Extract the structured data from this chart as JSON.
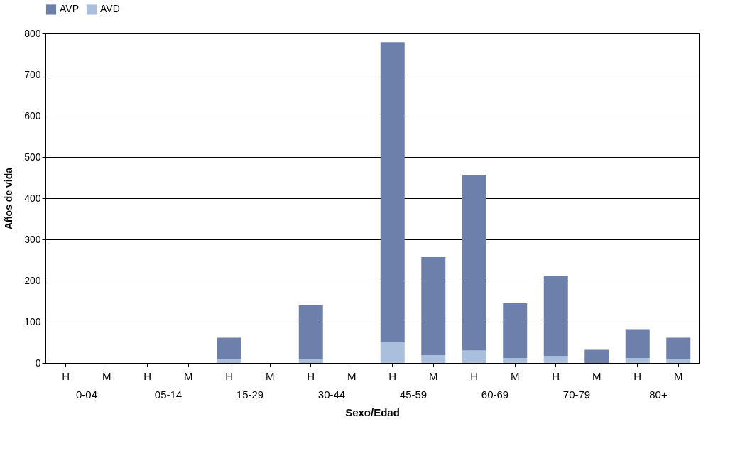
{
  "chart_data": {
    "type": "bar",
    "stacked": true,
    "xlabel": "Sexo/Edad",
    "ylabel": "Años de vida",
    "categories": [
      "H",
      "M",
      "H",
      "M",
      "H",
      "M",
      "H",
      "M",
      "H",
      "M",
      "H",
      "M",
      "H",
      "M",
      "H",
      "M"
    ],
    "annotations": [
      "0-04",
      "05-14",
      "15-29",
      "30-44",
      "45-59",
      "60-69",
      "70-79",
      "80+"
    ],
    "series": [
      {
        "name": "AVD",
        "color": "#a9bfdb",
        "values": [
          0,
          0,
          0,
          0,
          10,
          0,
          10,
          0,
          50,
          19,
          30,
          12,
          17,
          null,
          12,
          9
        ]
      },
      {
        "name": "AVP",
        "color": "#6d7fab",
        "values": [
          0,
          0,
          0,
          0,
          51,
          0,
          130,
          0,
          729,
          238,
          427,
          133,
          194,
          32,
          70,
          52
        ]
      }
    ],
    "ylim": [
      0,
      800
    ],
    "yticks": [
      0,
      100,
      200,
      300,
      400,
      500,
      600,
      700,
      800
    ],
    "grid": "y",
    "legend": "top"
  }
}
